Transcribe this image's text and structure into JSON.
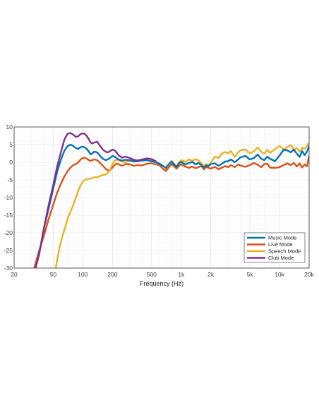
{
  "chart_data": {
    "type": "line",
    "xscale": "log",
    "xlabel": "Frequency (Hz)",
    "ylabel": "",
    "title": "",
    "xlim": [
      20,
      20000
    ],
    "ylim": [
      -30,
      10
    ],
    "grid": true,
    "legend_position": "bottom-right",
    "xticks": [
      {
        "v": 20,
        "label": "20"
      },
      {
        "v": 50,
        "label": "50"
      },
      {
        "v": 100,
        "label": "100"
      },
      {
        "v": 200,
        "label": "200"
      },
      {
        "v": 500,
        "label": "500"
      },
      {
        "v": 1000,
        "label": "1k"
      },
      {
        "v": 2000,
        "label": "2k"
      },
      {
        "v": 5000,
        "label": "5k"
      },
      {
        "v": 10000,
        "label": "10k"
      },
      {
        "v": 20000,
        "label": "20k"
      }
    ],
    "yticks": [
      {
        "v": 10,
        "label": "10"
      },
      {
        "v": 5,
        "label": "5"
      },
      {
        "v": 0,
        "label": "0"
      },
      {
        "v": -5,
        "label": "-5"
      },
      {
        "v": -10,
        "label": "-10"
      },
      {
        "v": -15,
        "label": "-15"
      },
      {
        "v": -20,
        "label": "-20"
      },
      {
        "v": -25,
        "label": "-25"
      },
      {
        "v": -30,
        "label": "-30"
      }
    ],
    "series": [
      {
        "name": "Live Mode",
        "color": "#D95319",
        "points": [
          [
            32,
            -30
          ],
          [
            36,
            -25
          ],
          [
            40,
            -21
          ],
          [
            45,
            -16
          ],
          [
            50,
            -12
          ],
          [
            55,
            -8.5
          ],
          [
            60,
            -6
          ],
          [
            65,
            -4
          ],
          [
            70,
            -2.5
          ],
          [
            75,
            -1.5
          ],
          [
            80,
            -0.8
          ],
          [
            85,
            -0.5
          ],
          [
            90,
            0
          ],
          [
            95,
            0.8
          ],
          [
            100,
            1.2
          ],
          [
            105,
            1.3
          ],
          [
            110,
            1
          ],
          [
            115,
            0.6
          ],
          [
            120,
            0.4
          ],
          [
            125,
            0.6
          ],
          [
            130,
            0.8
          ],
          [
            140,
            0.6
          ],
          [
            150,
            -0.2
          ],
          [
            160,
            -1
          ],
          [
            170,
            -1.8
          ],
          [
            180,
            -2.3
          ],
          [
            190,
            -2.2
          ],
          [
            200,
            -1.5
          ],
          [
            210,
            -0.8
          ],
          [
            220,
            -0.4
          ],
          [
            230,
            -0.5
          ],
          [
            240,
            -0.8
          ],
          [
            250,
            -1
          ],
          [
            270,
            -0.5
          ],
          [
            300,
            -0.6
          ],
          [
            330,
            -1
          ],
          [
            360,
            -0.8
          ],
          [
            400,
            -0.9
          ],
          [
            450,
            -0.4
          ],
          [
            500,
            -0.3
          ],
          [
            550,
            -0.6
          ],
          [
            600,
            -0.8
          ],
          [
            650,
            -1.8
          ],
          [
            700,
            -2.5
          ],
          [
            750,
            -1.4
          ],
          [
            800,
            -0.5
          ],
          [
            850,
            -1.2
          ],
          [
            900,
            -1.8
          ],
          [
            950,
            -1
          ],
          [
            1000,
            -0.6
          ],
          [
            1100,
            -1.2
          ],
          [
            1200,
            -1.6
          ],
          [
            1300,
            -1.2
          ],
          [
            1400,
            -1.7
          ],
          [
            1500,
            -1.4
          ],
          [
            1600,
            -1
          ],
          [
            1700,
            -2
          ],
          [
            1800,
            -1.3
          ],
          [
            1900,
            -1.6
          ],
          [
            2000,
            -1.8
          ],
          [
            2200,
            -1.3
          ],
          [
            2400,
            -2
          ],
          [
            2600,
            -1.5
          ],
          [
            2800,
            -1.1
          ],
          [
            3000,
            -1.4
          ],
          [
            3200,
            -0.8
          ],
          [
            3500,
            -1.4
          ],
          [
            3800,
            -0.6
          ],
          [
            4000,
            -0.9
          ],
          [
            4500,
            -1.3
          ],
          [
            5000,
            -0.8
          ],
          [
            5500,
            -0.2
          ],
          [
            6000,
            -0.7
          ],
          [
            6500,
            -1.4
          ],
          [
            7000,
            -0.5
          ],
          [
            7500,
            -0.4
          ],
          [
            8000,
            -1.5
          ],
          [
            9000,
            -1.6
          ],
          [
            10000,
            -1.4
          ],
          [
            11000,
            -0.8
          ],
          [
            12000,
            -0.3
          ],
          [
            13000,
            -0.8
          ],
          [
            14000,
            -0.2
          ],
          [
            15000,
            -1.2
          ],
          [
            16000,
            -0.3
          ],
          [
            17000,
            -1.5
          ],
          [
            18000,
            -0.6
          ],
          [
            19000,
            -1.2
          ],
          [
            20000,
            1.8
          ]
        ]
      },
      {
        "name": "Speech Mode",
        "color": "#EDB120",
        "points": [
          [
            53,
            -30
          ],
          [
            55,
            -27.5
          ],
          [
            58,
            -24
          ],
          [
            62,
            -21
          ],
          [
            66,
            -18.5
          ],
          [
            70,
            -16
          ],
          [
            75,
            -14
          ],
          [
            80,
            -12
          ],
          [
            85,
            -10
          ],
          [
            90,
            -8
          ],
          [
            95,
            -6.5
          ],
          [
            100,
            -5.5
          ],
          [
            105,
            -5
          ],
          [
            110,
            -4.8
          ],
          [
            120,
            -4.6
          ],
          [
            130,
            -4.3
          ],
          [
            140,
            -4.2
          ],
          [
            150,
            -3.9
          ],
          [
            160,
            -3.6
          ],
          [
            170,
            -3.5
          ],
          [
            180,
            -3
          ],
          [
            190,
            -2
          ],
          [
            200,
            -0.5
          ],
          [
            210,
            0.4
          ],
          [
            220,
            0.7
          ],
          [
            230,
            0.6
          ],
          [
            250,
            0.2
          ],
          [
            270,
            0
          ],
          [
            300,
            0.3
          ],
          [
            330,
            0.4
          ],
          [
            360,
            0.3
          ],
          [
            400,
            0.5
          ],
          [
            450,
            0.6
          ],
          [
            500,
            0.4
          ],
          [
            550,
            0.1
          ],
          [
            600,
            -0.3
          ],
          [
            650,
            -1
          ],
          [
            700,
            -1.7
          ],
          [
            750,
            -0.6
          ],
          [
            800,
            0.4
          ],
          [
            850,
            -0.5
          ],
          [
            900,
            -1.2
          ],
          [
            950,
            0
          ],
          [
            1000,
            0.6
          ],
          [
            1100,
            0.1
          ],
          [
            1200,
            0.8
          ],
          [
            1300,
            0.4
          ],
          [
            1400,
            0.9
          ],
          [
            1500,
            0.5
          ],
          [
            1600,
            -0.2
          ],
          [
            1700,
            -1
          ],
          [
            1800,
            -0.5
          ],
          [
            1900,
            -0.8
          ],
          [
            2000,
            -0.2
          ],
          [
            2200,
            1.6
          ],
          [
            2400,
            1.2
          ],
          [
            2600,
            2.5
          ],
          [
            2800,
            2.9
          ],
          [
            3000,
            2.5
          ],
          [
            3200,
            3.2
          ],
          [
            3500,
            1.5
          ],
          [
            3800,
            2.8
          ],
          [
            4000,
            3.4
          ],
          [
            4500,
            3.6
          ],
          [
            5000,
            2.5
          ],
          [
            5500,
            3.2
          ],
          [
            6000,
            4.2
          ],
          [
            6500,
            3
          ],
          [
            7000,
            2.4
          ],
          [
            7500,
            3.5
          ],
          [
            8000,
            2.7
          ],
          [
            9000,
            3.7
          ],
          [
            10000,
            4.6
          ],
          [
            11000,
            3.6
          ],
          [
            12000,
            4.3
          ],
          [
            13000,
            4.9
          ],
          [
            14000,
            3.5
          ],
          [
            15000,
            4
          ],
          [
            16000,
            3
          ],
          [
            17000,
            4.1
          ],
          [
            18000,
            3.8
          ],
          [
            19000,
            4.6
          ],
          [
            20000,
            5.6
          ]
        ]
      },
      {
        "name": "Music Mode",
        "color": "#0072BD",
        "points": [
          [
            33,
            -30
          ],
          [
            36,
            -26
          ],
          [
            40,
            -19
          ],
          [
            45,
            -13
          ],
          [
            50,
            -7.5
          ],
          [
            55,
            -2.5
          ],
          [
            60,
            0.8
          ],
          [
            65,
            3.3
          ],
          [
            70,
            4.6
          ],
          [
            75,
            5
          ],
          [
            80,
            4.6
          ],
          [
            85,
            4
          ],
          [
            90,
            3.8
          ],
          [
            95,
            4.3
          ],
          [
            100,
            4.4
          ],
          [
            105,
            4.2
          ],
          [
            110,
            3.7
          ],
          [
            115,
            3
          ],
          [
            120,
            2.3
          ],
          [
            125,
            2.5
          ],
          [
            130,
            3
          ],
          [
            140,
            2.8
          ],
          [
            150,
            1.8
          ],
          [
            160,
            1
          ],
          [
            170,
            0.6
          ],
          [
            180,
            0.8
          ],
          [
            190,
            1.3
          ],
          [
            200,
            1.8
          ],
          [
            210,
            1.6
          ],
          [
            220,
            1.2
          ],
          [
            230,
            0.8
          ],
          [
            250,
            0.5
          ],
          [
            270,
            0.7
          ],
          [
            300,
            0.6
          ],
          [
            330,
            0.2
          ],
          [
            360,
            0.3
          ],
          [
            400,
            0.5
          ],
          [
            450,
            0.6
          ],
          [
            500,
            0.3
          ],
          [
            550,
            0
          ],
          [
            600,
            -0.4
          ],
          [
            650,
            -1
          ],
          [
            700,
            -1.6
          ],
          [
            750,
            -0.5
          ],
          [
            800,
            0.2
          ],
          [
            850,
            -0.7
          ],
          [
            900,
            -1.3
          ],
          [
            950,
            -0.3
          ],
          [
            1000,
            0.1
          ],
          [
            1100,
            -0.6
          ],
          [
            1200,
            -0.2
          ],
          [
            1300,
            0.1
          ],
          [
            1400,
            -0.6
          ],
          [
            1500,
            -0.2
          ],
          [
            1600,
            -0.8
          ],
          [
            1700,
            -1.5
          ],
          [
            1800,
            -0.9
          ],
          [
            1900,
            -1.1
          ],
          [
            2000,
            -0.5
          ],
          [
            2200,
            -0.3
          ],
          [
            2400,
            -1
          ],
          [
            2600,
            -0.4
          ],
          [
            2800,
            0.2
          ],
          [
            3000,
            0.3
          ],
          [
            3200,
            0.8
          ],
          [
            3500,
            0
          ],
          [
            3800,
            0.8
          ],
          [
            4000,
            1.4
          ],
          [
            4500,
            1.8
          ],
          [
            5000,
            0.8
          ],
          [
            5500,
            1.2
          ],
          [
            6000,
            2.2
          ],
          [
            6500,
            1
          ],
          [
            7000,
            0.6
          ],
          [
            7500,
            1.6
          ],
          [
            8000,
            1
          ],
          [
            9000,
            0.3
          ],
          [
            10000,
            1.9
          ],
          [
            11000,
            3.5
          ],
          [
            12000,
            3.4
          ],
          [
            13000,
            2.8
          ],
          [
            14000,
            3.6
          ],
          [
            15000,
            2.4
          ],
          [
            16000,
            1.5
          ],
          [
            17000,
            3.2
          ],
          [
            18000,
            2
          ],
          [
            19000,
            3
          ],
          [
            20000,
            4.6
          ]
        ]
      },
      {
        "name": "Club Mode",
        "color": "#7E2F8E",
        "points": [
          [
            33,
            -30
          ],
          [
            36,
            -26
          ],
          [
            40,
            -19
          ],
          [
            45,
            -12
          ],
          [
            50,
            -6.5
          ],
          [
            55,
            -1
          ],
          [
            60,
            3
          ],
          [
            65,
            6.5
          ],
          [
            70,
            8.1
          ],
          [
            75,
            8.3
          ],
          [
            80,
            7.8
          ],
          [
            85,
            7.2
          ],
          [
            90,
            7.4
          ],
          [
            95,
            8
          ],
          [
            100,
            8.2
          ],
          [
            105,
            8
          ],
          [
            110,
            7.4
          ],
          [
            115,
            6.5
          ],
          [
            120,
            5.6
          ],
          [
            125,
            5.3
          ],
          [
            130,
            5.6
          ],
          [
            140,
            5.8
          ],
          [
            150,
            4.6
          ],
          [
            160,
            3.6
          ],
          [
            170,
            3
          ],
          [
            180,
            2.8
          ],
          [
            190,
            3.2
          ],
          [
            200,
            3.6
          ],
          [
            210,
            3.4
          ],
          [
            220,
            2.8
          ],
          [
            230,
            2
          ],
          [
            250,
            1.3
          ],
          [
            270,
            1.6
          ],
          [
            300,
            1.2
          ],
          [
            330,
            0.7
          ],
          [
            360,
            0.5
          ],
          [
            400,
            0.8
          ],
          [
            450,
            1.1
          ],
          [
            500,
            0.9
          ],
          [
            550,
            0.3
          ]
        ]
      }
    ]
  },
  "legend_items": [
    "Music Mode",
    "Live Mode",
    "Speech Mode",
    "Club Mode"
  ]
}
